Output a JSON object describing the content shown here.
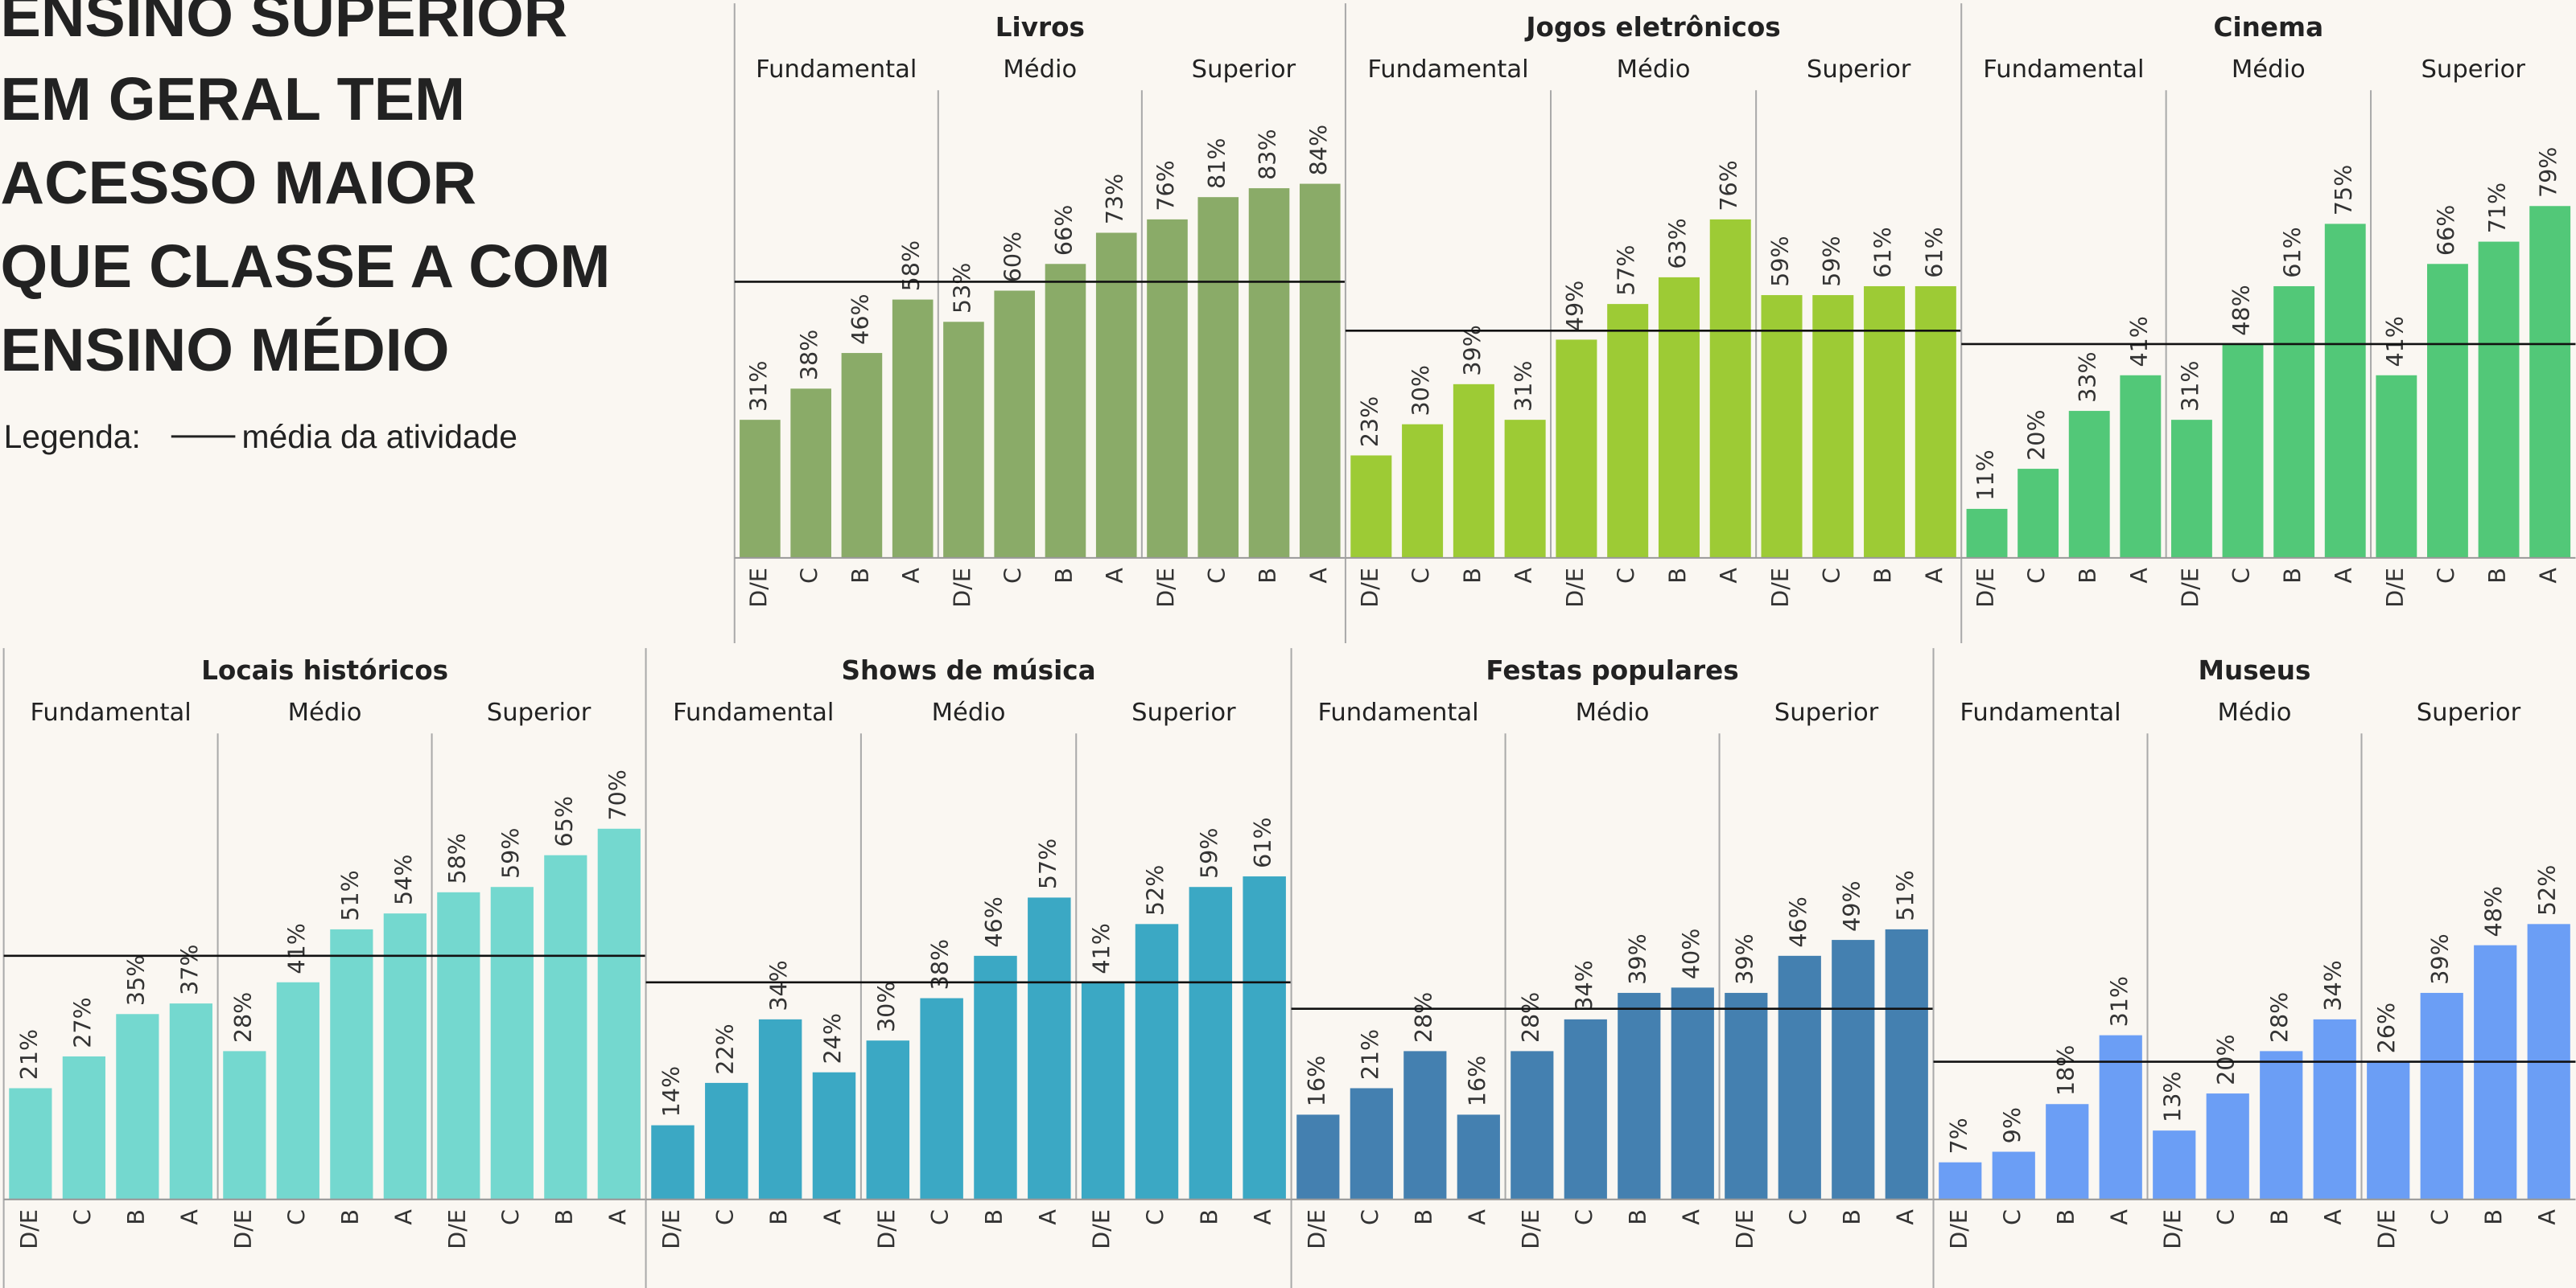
{
  "title_lines": [
    "ENSINO SUPERIOR",
    "EM GERAL TEM",
    "ACESSO MAIOR",
    "QUE CLASSE A COM",
    "ENSINO MÉDIO"
  ],
  "legend": {
    "label": "Legenda:",
    "item": "média da atividade"
  },
  "chart_data": [
    {
      "type": "bar",
      "title": "Livros",
      "color": "#8aab68",
      "categories": [
        "D/E",
        "C",
        "B",
        "A"
      ],
      "ylim": [
        0,
        105
      ],
      "average": 62,
      "series": [
        {
          "name": "Fundamental",
          "values": [
            31,
            38,
            46,
            58
          ],
          "value_labels": [
            "31%",
            "38%",
            "46%",
            "58%"
          ]
        },
        {
          "name": "Médio",
          "values": [
            53,
            60,
            66,
            73
          ],
          "value_labels": [
            "53%",
            "60%",
            "66%",
            "73%"
          ]
        },
        {
          "name": "Superior",
          "values": [
            76,
            81,
            83,
            84
          ],
          "value_labels": [
            "76%",
            "81%",
            "83%",
            "84%"
          ]
        }
      ]
    },
    {
      "type": "bar",
      "title": "Jogos eletrônicos",
      "color": "#9dcb35",
      "categories": [
        "D/E",
        "C",
        "B",
        "A"
      ],
      "ylim": [
        0,
        105
      ],
      "average": 51,
      "series": [
        {
          "name": "Fundamental",
          "values": [
            23,
            30,
            39,
            31
          ],
          "value_labels": [
            "23%",
            "30%",
            "39%",
            "31%"
          ]
        },
        {
          "name": "Médio",
          "values": [
            49,
            57,
            63,
            76
          ],
          "value_labels": [
            "49%",
            "57%",
            "63%",
            "76%"
          ]
        },
        {
          "name": "Superior",
          "values": [
            59,
            59,
            61,
            61
          ],
          "value_labels": [
            "59%",
            "59%",
            "61%",
            "61%"
          ]
        }
      ]
    },
    {
      "type": "bar",
      "title": "Cinema",
      "color": "#52c878",
      "categories": [
        "D/E",
        "C",
        "B",
        "A"
      ],
      "ylim": [
        0,
        105
      ],
      "average": 48,
      "series": [
        {
          "name": "Fundamental",
          "values": [
            11,
            20,
            33,
            41
          ],
          "value_labels": [
            "11%",
            "20%",
            "33%",
            "41%"
          ]
        },
        {
          "name": "Médio",
          "values": [
            31,
            48,
            61,
            75
          ],
          "value_labels": [
            "31%",
            "48%",
            "61%",
            "75%"
          ]
        },
        {
          "name": "Superior",
          "values": [
            41,
            66,
            71,
            79
          ],
          "value_labels": [
            "41%",
            "66%",
            "71%",
            "79%"
          ]
        }
      ]
    },
    {
      "type": "bar",
      "title": "Locais históricos",
      "color": "#74d8cf",
      "categories": [
        "D/E",
        "C",
        "B",
        "A"
      ],
      "ylim": [
        0,
        88
      ],
      "average": 46,
      "series": [
        {
          "name": "Fundamental",
          "values": [
            21,
            27,
            35,
            37
          ],
          "value_labels": [
            "21%",
            "27%",
            "35%",
            "37%"
          ]
        },
        {
          "name": "Médio",
          "values": [
            28,
            41,
            51,
            54
          ],
          "value_labels": [
            "28%",
            "41%",
            "51%",
            "54%"
          ]
        },
        {
          "name": "Superior",
          "values": [
            58,
            59,
            65,
            70
          ],
          "value_labels": [
            "58%",
            "59%",
            "65%",
            "70%"
          ]
        }
      ]
    },
    {
      "type": "bar",
      "title": "Shows de música",
      "color": "#3ba8c4",
      "categories": [
        "D/E",
        "C",
        "B",
        "A"
      ],
      "ylim": [
        0,
        88
      ],
      "average": 41,
      "series": [
        {
          "name": "Fundamental",
          "values": [
            14,
            22,
            34,
            24
          ],
          "value_labels": [
            "14%",
            "22%",
            "34%",
            "24%"
          ]
        },
        {
          "name": "Médio",
          "values": [
            30,
            38,
            46,
            57
          ],
          "value_labels": [
            "30%",
            "38%",
            "46%",
            "57%"
          ]
        },
        {
          "name": "Superior",
          "values": [
            41,
            52,
            59,
            61
          ],
          "value_labels": [
            "41%",
            "52%",
            "59%",
            "61%"
          ]
        }
      ]
    },
    {
      "type": "bar",
      "title": "Festas populares",
      "color": "#4480b0",
      "categories": [
        "D/E",
        "C",
        "B",
        "A"
      ],
      "ylim": [
        0,
        88
      ],
      "average": 36,
      "series": [
        {
          "name": "Fundamental",
          "values": [
            16,
            21,
            28,
            16
          ],
          "value_labels": [
            "16%",
            "21%",
            "28%",
            "16%"
          ]
        },
        {
          "name": "Médio",
          "values": [
            28,
            34,
            39,
            40
          ],
          "value_labels": [
            "28%",
            "34%",
            "39%",
            "40%"
          ]
        },
        {
          "name": "Superior",
          "values": [
            39,
            46,
            49,
            51
          ],
          "value_labels": [
            "39%",
            "46%",
            "49%",
            "51%"
          ]
        }
      ]
    },
    {
      "type": "bar",
      "title": "Museus",
      "color": "#6b9ef5",
      "categories": [
        "D/E",
        "C",
        "B",
        "A"
      ],
      "ylim": [
        0,
        88
      ],
      "average": 26,
      "series": [
        {
          "name": "Fundamental",
          "values": [
            7,
            9,
            18,
            31
          ],
          "value_labels": [
            "7%",
            "9%",
            "18%",
            "31%"
          ]
        },
        {
          "name": "Médio",
          "values": [
            13,
            20,
            28,
            34
          ],
          "value_labels": [
            "13%",
            "20%",
            "28%",
            "34%"
          ]
        },
        {
          "name": "Superior",
          "values": [
            26,
            39,
            48,
            52
          ],
          "value_labels": [
            "26%",
            "39%",
            "48%",
            "52%"
          ]
        }
      ]
    }
  ]
}
